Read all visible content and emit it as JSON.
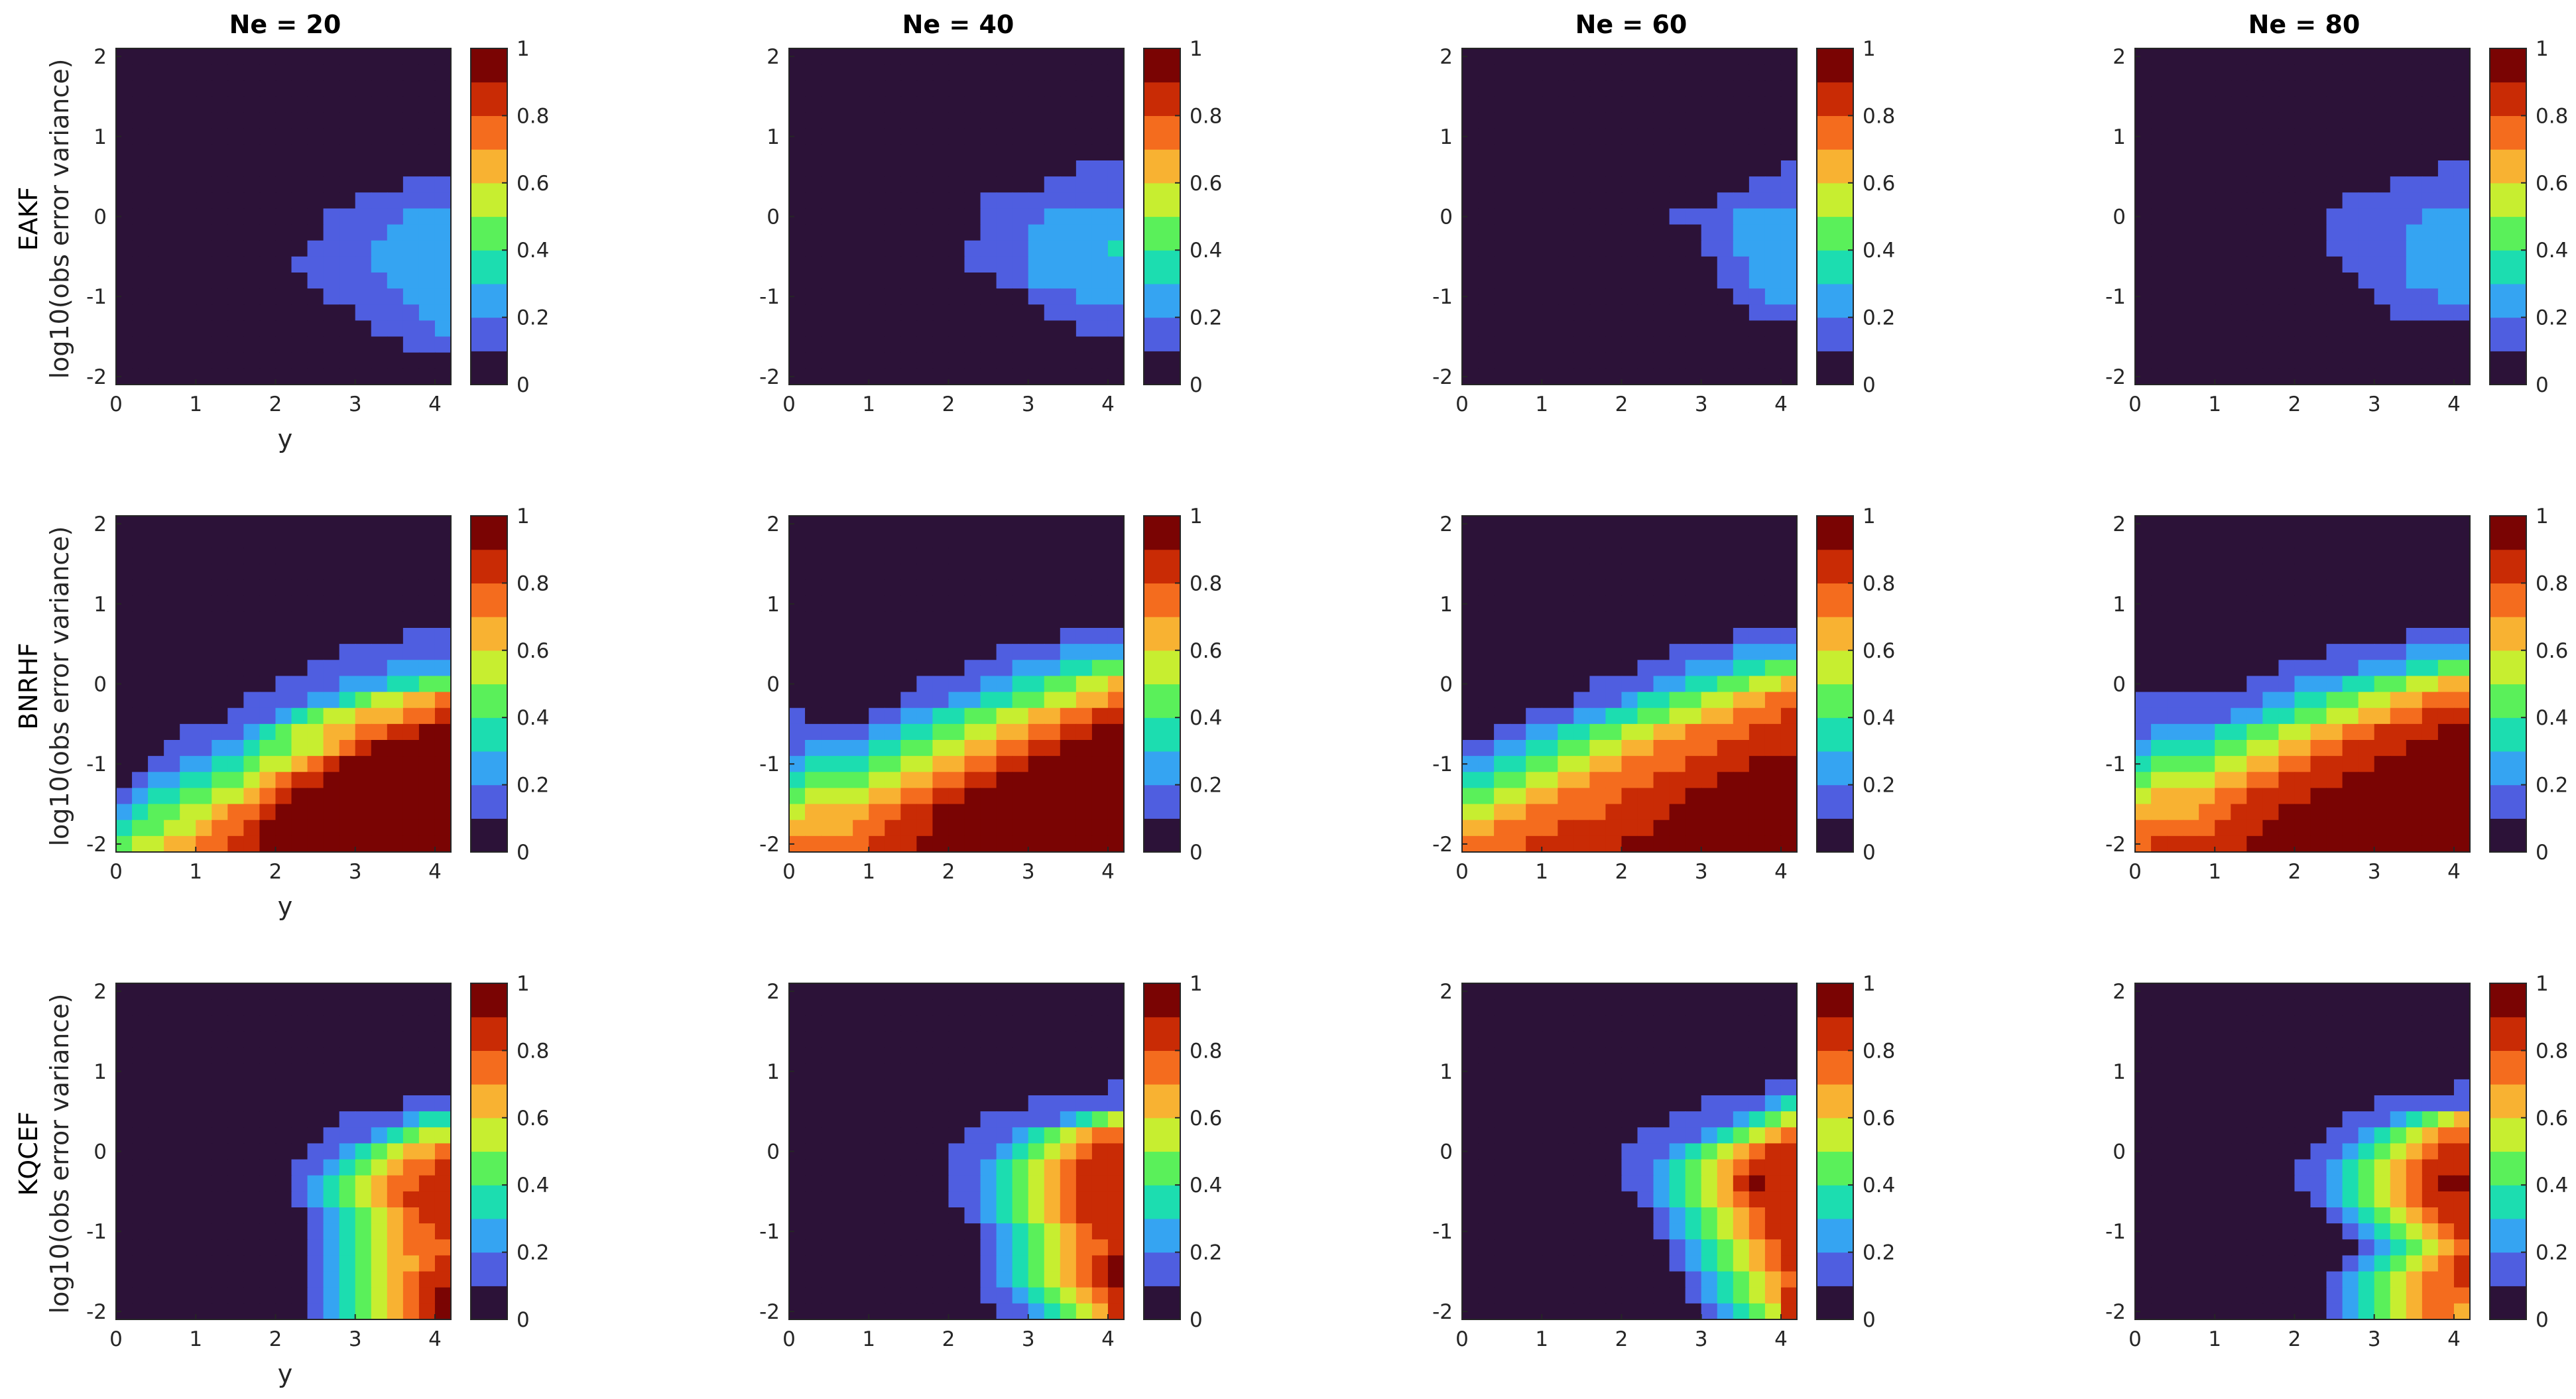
{
  "figure": {
    "column_titles": [
      "Ne = 20",
      "Ne = 40",
      "Ne = 60",
      "Ne = 80"
    ],
    "row_labels": [
      "EAKF",
      "BNRHF",
      "KQCEF"
    ],
    "xlabel": "y",
    "ylabel": "log10(obs error variance)"
  },
  "axes": {
    "x_ticks": [
      "0",
      "1",
      "2",
      "3",
      "4"
    ],
    "y_ticks": [
      "2",
      "1",
      "0",
      "-1",
      "-2"
    ],
    "cb_ticks": [
      "1",
      "0.8",
      "0.6",
      "0.4",
      "0.2",
      "0"
    ]
  },
  "colormap": [
    "#2c1238",
    "#4f5ee0",
    "#35a4f2",
    "#1cddb0",
    "#5af05a",
    "#c7ee30",
    "#f8b232",
    "#f46c1e",
    "#c92b05",
    "#7a0403"
  ],
  "chart_data": {
    "type": "heatmap",
    "xlabel": "y",
    "ylabel": "log10(obs error variance)",
    "xlim": [
      0,
      4.2
    ],
    "ylim": [
      -2.1,
      2.1
    ],
    "clim": [
      0,
      1
    ],
    "x_centers": [
      0,
      0.2,
      0.4,
      0.6,
      0.8,
      1.0,
      1.2,
      1.4,
      1.6,
      1.8,
      2.0,
      2.2,
      2.4,
      2.6,
      2.8,
      3.0,
      3.2,
      3.4,
      3.6,
      3.8,
      4.0
    ],
    "y_centers": [
      2,
      1.8,
      1.6,
      1.4,
      1.2,
      1.0,
      0.8,
      0.6,
      0.4,
      0.2,
      0,
      -0.2,
      -0.4,
      -0.6,
      -0.8,
      -1.0,
      -1.2,
      -1.4,
      -1.6,
      -1.8,
      -2.0
    ],
    "panels": [
      {
        "row": "EAKF",
        "ne": "Ne = 20",
        "values": [
          "000000000000000000000",
          "000000000000000000000",
          "000000000000000000000",
          "000000000000000000000",
          "000000000000000000000",
          "000000000000000000000",
          "000000000000000000000",
          "000000000000000000000",
          "000000000000000000111",
          "000000000000000111111",
          "000000000000011111222",
          "000000000000011112222",
          "000000000000111122222",
          "000000000001111122222",
          "000000000000111112222",
          "000000000000011111222",
          "000000000000000111122",
          "000000000000000011112",
          "000000000000000000111",
          "000000000000000000000",
          "000000000000000000000"
        ]
      },
      {
        "row": "EAKF",
        "ne": "Ne = 40",
        "values": [
          "000000000000000000000",
          "000000000000000000000",
          "000000000000000000000",
          "000000000000000000000",
          "000000000000000000000",
          "000000000000000000000",
          "000000000000000000000",
          "000000000000000000111",
          "000000000000000011111",
          "000000000000111111111",
          "000000000000111122222",
          "000000000000111222222",
          "000000000001111222223",
          "000000000001111222222",
          "000000000000011222222",
          "000000000000000111222",
          "000000000000000011111",
          "000000000000000000111",
          "000000000000000000000",
          "000000000000000000000",
          "000000000000000000000"
        ]
      },
      {
        "row": "EAKF",
        "ne": "Ne = 60",
        "values": [
          "000000000000000000000",
          "000000000000000000000",
          "000000000000000000000",
          "000000000000000000000",
          "000000000000000000000",
          "000000000000000000000",
          "000000000000000000000",
          "000000000000000000001",
          "000000000000000000111",
          "000000000000000011111",
          "000000000000011112222",
          "000000000000000112222",
          "000000000000000112222",
          "000000000000000011222",
          "000000000000000011222",
          "000000000000000001122",
          "000000000000000000111",
          "000000000000000000000",
          "000000000000000000000",
          "000000000000000000000",
          "000000000000000000000"
        ]
      },
      {
        "row": "EAKF",
        "ne": "Ne = 80",
        "values": [
          "000000000000000000000",
          "000000000000000000000",
          "000000000000000000000",
          "000000000000000000000",
          "000000000000000000000",
          "000000000000000000000",
          "000000000000000000000",
          "000000000000000000011",
          "000000000000000011111",
          "000000000000011111111",
          "000000000000111111222",
          "000000000000111112222",
          "000000000000111112222",
          "000000000000011112222",
          "000000000000001112222",
          "000000000000000111122",
          "000000000000000011111",
          "000000000000000000000",
          "000000000000000000000",
          "000000000000000000000",
          "000000000000000000000"
        ]
      },
      {
        "row": "BNRHF",
        "ne": "Ne = 20",
        "values": [
          "000000000000000000000",
          "000000000000000000000",
          "000000000000000000000",
          "000000000000000000000",
          "000000000000000000000",
          "000000000000000000000",
          "000000000000000000000",
          "000000000000000000111",
          "000000000000001111111",
          "000000000000111112222",
          "000000000011112223344",
          "000000001111223455667",
          "000000011123455666778",
          "000011112345566778899",
          "000111223445567899999",
          "001122334556789999999",
          "012233445678899999999",
          "123344556789999999999",
          "234455677899999999999",
          "344556778999999999999",
          "455667788999999999999"
        ]
      },
      {
        "row": "BNRHF",
        "ne": "Ne = 40",
        "values": [
          "000000000000000000000",
          "000000000000000000000",
          "000000000000000000000",
          "000000000000000000000",
          "000000000000000000000",
          "000000000000000000000",
          "000000000000000000000",
          "000000000000000001111",
          "000000000000011112222",
          "000000000001112223344",
          "000000001111223344556",
          "000000011122334455667",
          "100001122334455667788",
          "111112233445566778899",
          "122223344556677889999",
          "233334455667788999999",
          "344445566778899999999",
          "455556677889999999999",
          "566667788999999999999",
          "666677888999999999999",
          "777778889999999999999"
        ]
      },
      {
        "row": "BNRHF",
        "ne": "Ne = 60",
        "values": [
          "000000000000000000000",
          "000000000000000000000",
          "000000000000000000000",
          "000000000000000000000",
          "000000000000000000000",
          "000000000000000000000",
          "000000000000000000000",
          "000000000000000001111",
          "000000000000011112222",
          "000000000001112223344",
          "000000001111223344556",
          "000000011123344556677",
          "000011122334455667778",
          "001122334455667777888",
          "112233445566777788888",
          "223344556677778888999",
          "334455667777888899999",
          "445566777788889999999",
          "556677777888899999999",
          "667777888888999999999",
          "777788888899999999999"
        ]
      },
      {
        "row": "BNRHF",
        "ne": "Ne = 80",
        "values": [
          "000000000000000000000",
          "000000000000000000000",
          "000000000000000000000",
          "000000000000000000000",
          "000000000000000000000",
          "000000000000000000000",
          "000000000000000000000",
          "000000000000000001111",
          "000000000000111112222",
          "000000000111112223344",
          "000000011122233445566",
          "111111112233445566777",
          "111111223344556677888",
          "122223344556677888899",
          "233334455667788889999",
          "344445566778888999999",
          "455556677888899999999",
          "566667788889999999999",
          "666677888999999999999",
          "777778889999999999999",
          "788888899999999999999"
        ]
      },
      {
        "row": "KQCEF",
        "ne": "Ne = 20",
        "values": [
          "000000000000000000000",
          "000000000000000000000",
          "000000000000000000000",
          "000000000000000000000",
          "000000000000000000000",
          "000000000000000000000",
          "000000000000000000000",
          "000000000000000000111",
          "000000000000001111233",
          "000000000000011123455",
          "000000000000112345667",
          "000000000001123456778",
          "000000000001234567788",
          "000000000001234567888",
          "000000000000123456788",
          "000000000000123456778",
          "000000000000123456777",
          "000000000000123456678",
          "000000000000123456788",
          "000000000000123456789",
          "000000000000123456789"
        ]
      },
      {
        "row": "KQCEF",
        "ne": "Ne = 40",
        "values": [
          "000000000000000000000",
          "000000000000000000000",
          "000000000000000000000",
          "000000000000000000000",
          "000000000000000000000",
          "000000000000000000000",
          "000000000000000000001",
          "000000000000000111111",
          "000000000000111112345",
          "000000000001112345677",
          "000000000011123456788",
          "000000000011234567888",
          "000000000011234567888",
          "000000000011234567888",
          "000000000001234567888",
          "000000000000123456788",
          "000000000000123456778",
          "000000000000123456789",
          "000000000000123456789",
          "000000000000112345678",
          "000000000000011234568"
        ]
      },
      {
        "row": "KQCEF",
        "ne": "Ne = 60",
        "values": [
          "000000000000000000000",
          "000000000000000000000",
          "000000000000000000000",
          "000000000000000000000",
          "000000000000000000000",
          "000000000000000000000",
          "000000000000000000011",
          "000000000000000111123",
          "000000000000011112345",
          "000000000001111234567",
          "000000000011123456788",
          "000000000011234567888",
          "000000000011234568988",
          "000000000001234567888",
          "000000000000123456788",
          "000000000000123456788",
          "000000000000012345678",
          "000000000000012345678",
          "000000000000001234567",
          "000000000000001234568",
          "000000000000000123458"
        ]
      },
      {
        "row": "KQCEF",
        "ne": "Ne = 80",
        "values": [
          "000000000000000000000",
          "000000000000000000000",
          "000000000000000000000",
          "000000000000000000000",
          "000000000000000000000",
          "000000000000000000000",
          "000000000000000000001",
          "000000000000000111111",
          "000000000000011123456",
          "000000000000112345677",
          "000000000001123456788",
          "000000000011234567888",
          "000000000011234567899",
          "000000000001234567888",
          "000000000000123456788",
          "000000000000012345678",
          "000000000000001234567",
          "000000000000012345678",
          "000000000000123456778",
          "000000000000123456777",
          "000000000000123456776"
        ]
      }
    ]
  }
}
